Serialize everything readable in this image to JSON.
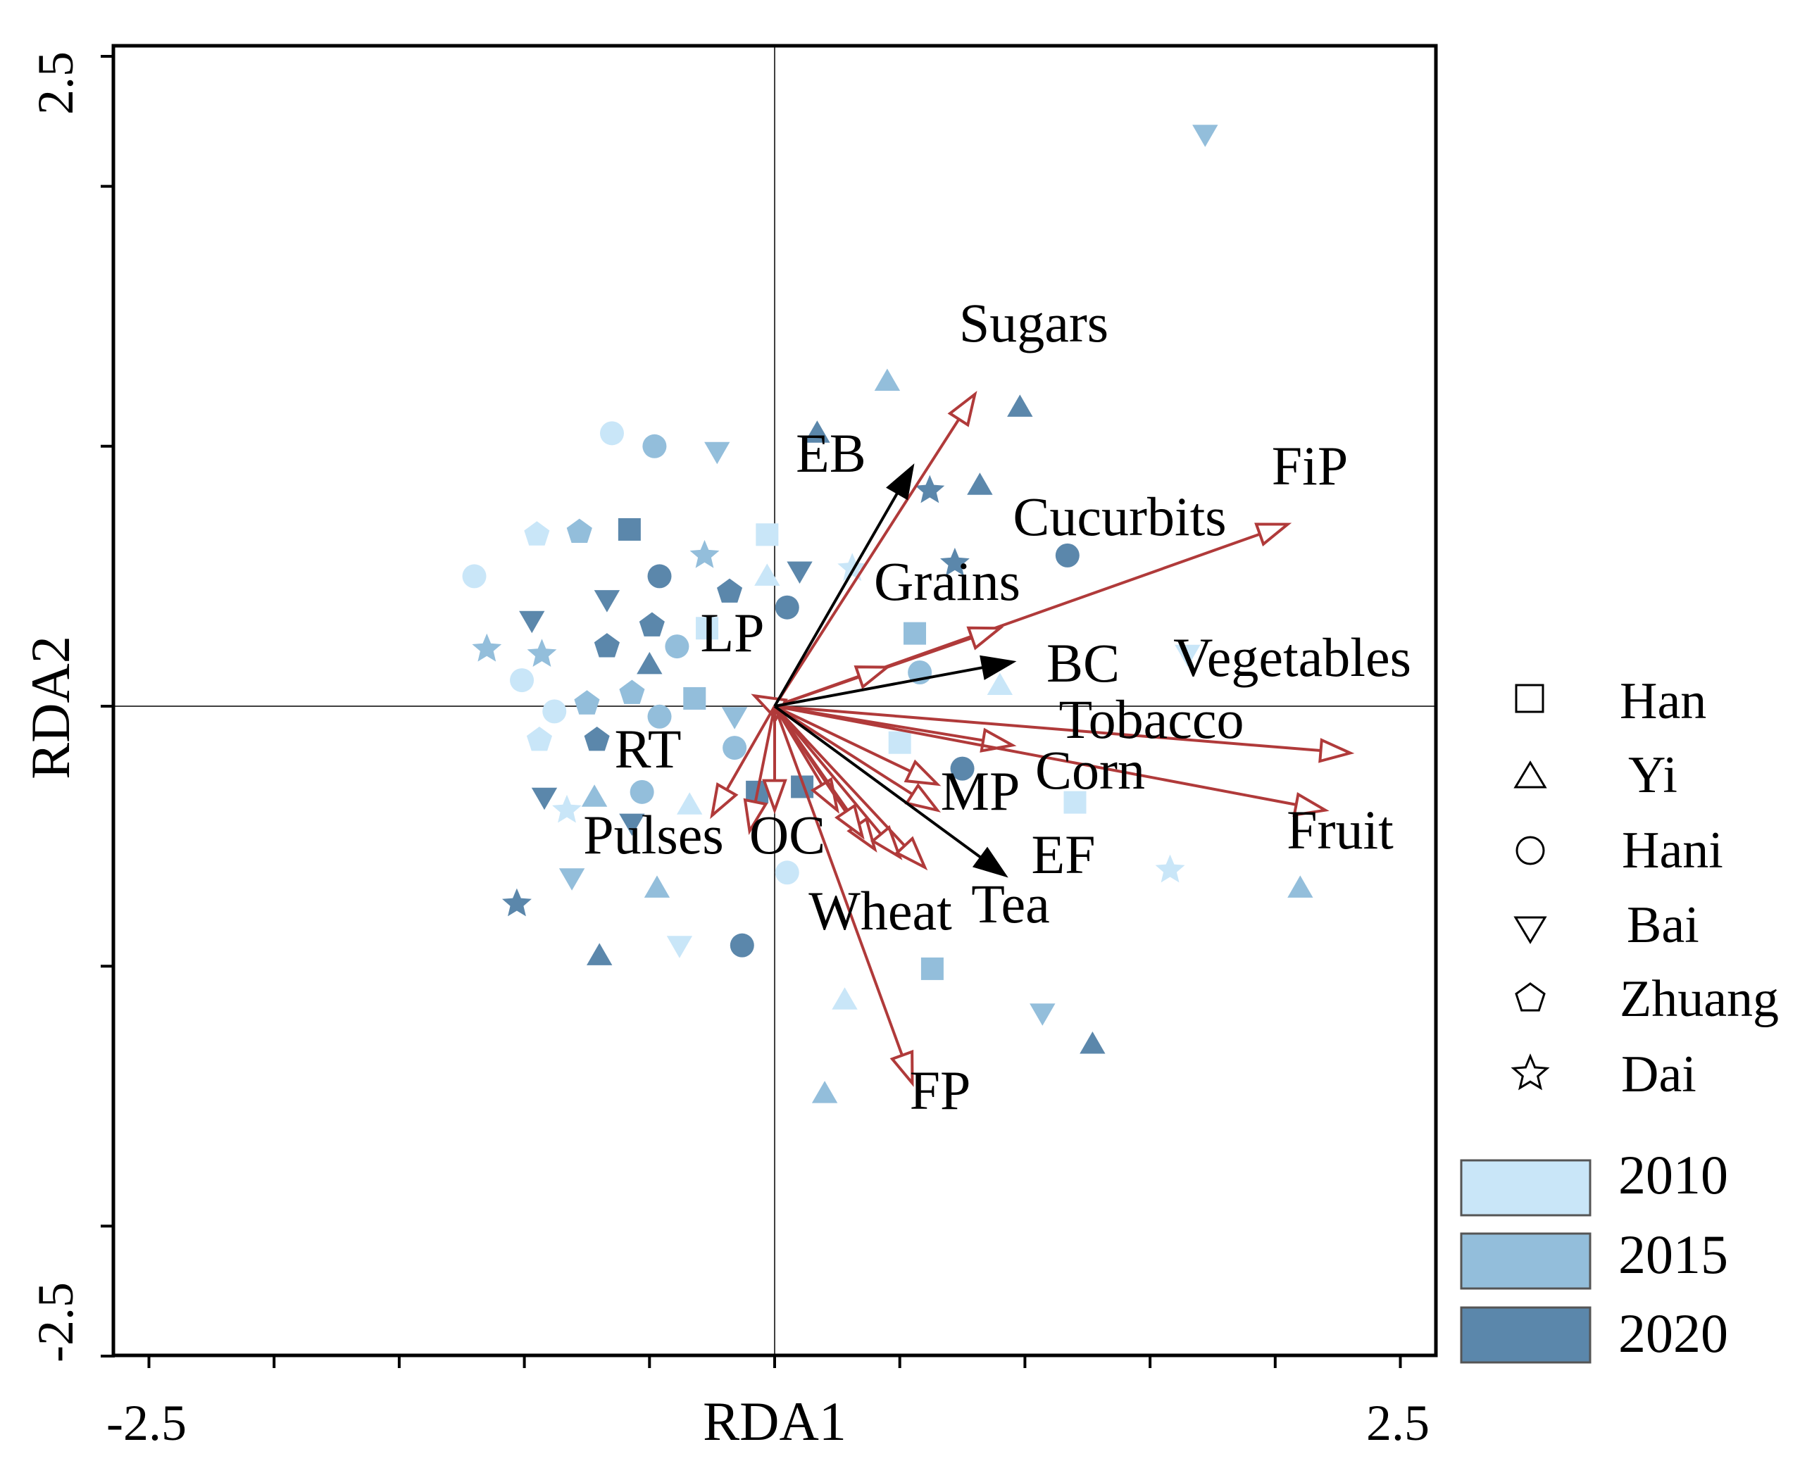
{
  "chart_data": {
    "type": "scatter",
    "subtype": "RDA biplot",
    "title": "",
    "xlabel": "RDA1",
    "ylabel": "RDA2",
    "xlim": [
      -2.5,
      2.5
    ],
    "ylim": [
      -2.5,
      2.5
    ],
    "x_tick_labels": [
      "-2.5",
      "2.5"
    ],
    "y_tick_labels": [
      "2.5",
      "-2.5"
    ],
    "x_ticks": [
      -2.5,
      -2.0,
      -1.5,
      -1.0,
      -0.5,
      0,
      0.5,
      1.0,
      1.5,
      2.0,
      2.5
    ],
    "y_ticks": [
      2.5,
      2.0,
      1.0,
      0,
      -1.0,
      -2.0,
      -2.5
    ],
    "reference_lines": [
      0,
      0
    ],
    "colors": {
      "2010": "#c9e6f8",
      "2015": "#93bedb",
      "2020": "#5b87ab",
      "response_arrow": "#b03a3a",
      "explanatory_arrow": "#000000"
    },
    "response_vectors": [
      {
        "label": "Sugars",
        "x": 0.8,
        "y": 1.2
      },
      {
        "label": "FiP",
        "x": 2.05,
        "y": 0.7
      },
      {
        "label": "Cucurbits",
        "x": 0.9,
        "y": 0.3
      },
      {
        "label": "Grains",
        "x": 0.45,
        "y": 0.15
      },
      {
        "label": "LP",
        "x": -0.08,
        "y": 0.04
      },
      {
        "label": "Vegetables",
        "x": 2.3,
        "y": -0.18
      },
      {
        "label": "Tobacco",
        "x": 0.95,
        "y": -0.15
      },
      {
        "label": "Fruit",
        "x": 2.2,
        "y": -0.4
      },
      {
        "label": "Corn",
        "x": 0.65,
        "y": -0.3
      },
      {
        "label": "MP",
        "x": 0.65,
        "y": -0.4
      },
      {
        "label": "RT",
        "x": -0.25,
        "y": -0.42
      },
      {
        "label": "Pulses",
        "x": -0.1,
        "y": -0.48
      },
      {
        "label": "OC",
        "x": 0.0,
        "y": -0.4
      },
      {
        "label": "Wheat",
        "x": 0.35,
        "y": -0.5
      },
      {
        "label": "Tea",
        "x": 0.6,
        "y": -0.62
      },
      {
        "label": "FP",
        "x": 0.55,
        "y": -1.45
      }
    ],
    "extra_response_arrows": [
      {
        "x": 0.25,
        "y": -0.4
      },
      {
        "x": 0.4,
        "y": -0.55
      },
      {
        "x": 0.5,
        "y": -0.58
      }
    ],
    "explanatory_vectors": [
      {
        "label": "EB",
        "x": 0.55,
        "y": 0.92
      },
      {
        "label": "BC",
        "x": 0.95,
        "y": 0.17
      },
      {
        "label": "EF",
        "x": 0.92,
        "y": -0.65
      }
    ],
    "legend_groups": [
      {
        "name": "Han",
        "shape": "square"
      },
      {
        "name": "Yi",
        "shape": "triangle-up"
      },
      {
        "name": "Hani",
        "shape": "circle"
      },
      {
        "name": "Bai",
        "shape": "triangle-down"
      },
      {
        "name": "Zhuang",
        "shape": "pentagon"
      },
      {
        "name": "Dai",
        "shape": "star"
      }
    ],
    "legend_years": [
      "2010",
      "2015",
      "2020"
    ],
    "points": [
      {
        "group": "Bai",
        "year": "2015",
        "x": 1.72,
        "y": 2.2
      },
      {
        "group": "Yi",
        "year": "2015",
        "x": 0.45,
        "y": 1.25
      },
      {
        "group": "Yi",
        "year": "2020",
        "x": 0.98,
        "y": 1.15
      },
      {
        "group": "Yi",
        "year": "2020",
        "x": 0.17,
        "y": 1.05
      },
      {
        "group": "Hani",
        "year": "2010",
        "x": -0.65,
        "y": 1.05
      },
      {
        "group": "Hani",
        "year": "2015",
        "x": -0.48,
        "y": 1.0
      },
      {
        "group": "Bai",
        "year": "2015",
        "x": -0.23,
        "y": 0.98
      },
      {
        "group": "Yi",
        "year": "2020",
        "x": 0.82,
        "y": 0.85
      },
      {
        "group": "Dai",
        "year": "2020",
        "x": 0.62,
        "y": 0.83
      },
      {
        "group": "Zhuang",
        "year": "2010",
        "x": -0.95,
        "y": 0.66
      },
      {
        "group": "Zhuang",
        "year": "2015",
        "x": -0.78,
        "y": 0.67
      },
      {
        "group": "Han",
        "year": "2020",
        "x": -0.58,
        "y": 0.68
      },
      {
        "group": "Han",
        "year": "2010",
        "x": -0.03,
        "y": 0.66
      },
      {
        "group": "Dai",
        "year": "2015",
        "x": -0.28,
        "y": 0.58
      },
      {
        "group": "Bai",
        "year": "2020",
        "x": 0.1,
        "y": 0.52
      },
      {
        "group": "Dai",
        "year": "2010",
        "x": 0.31,
        "y": 0.53
      },
      {
        "group": "Dai",
        "year": "2020",
        "x": 0.72,
        "y": 0.55
      },
      {
        "group": "Hani",
        "year": "2020",
        "x": 1.17,
        "y": 0.58
      },
      {
        "group": "Hani",
        "year": "2010",
        "x": -1.2,
        "y": 0.5
      },
      {
        "group": "Hani",
        "year": "2020",
        "x": -0.46,
        "y": 0.5
      },
      {
        "group": "Yi",
        "year": "2010",
        "x": -0.03,
        "y": 0.5
      },
      {
        "group": "Zhuang",
        "year": "2020",
        "x": -0.18,
        "y": 0.44
      },
      {
        "group": "Bai",
        "year": "2020",
        "x": -0.67,
        "y": 0.41
      },
      {
        "group": "Hani",
        "year": "2020",
        "x": 0.05,
        "y": 0.38
      },
      {
        "group": "Bai",
        "year": "2020",
        "x": -0.97,
        "y": 0.33
      },
      {
        "group": "Zhuang",
        "year": "2020",
        "x": -0.49,
        "y": 0.31
      },
      {
        "group": "Han",
        "year": "2010",
        "x": -0.27,
        "y": 0.3
      },
      {
        "group": "Han",
        "year": "2015",
        "x": 0.56,
        "y": 0.28
      },
      {
        "group": "Hani",
        "year": "2015",
        "x": -0.39,
        "y": 0.23
      },
      {
        "group": "Dai",
        "year": "2015",
        "x": -1.15,
        "y": 0.22
      },
      {
        "group": "Dai",
        "year": "2015",
        "x": -0.93,
        "y": 0.2
      },
      {
        "group": "Zhuang",
        "year": "2020",
        "x": -0.67,
        "y": 0.23
      },
      {
        "group": "Yi",
        "year": "2020",
        "x": -0.5,
        "y": 0.16
      },
      {
        "group": "Bai",
        "year": "2010",
        "x": 1.65,
        "y": 0.2
      },
      {
        "group": "Hani",
        "year": "2010",
        "x": -1.01,
        "y": 0.1
      },
      {
        "group": "Hani",
        "year": "2015",
        "x": 0.58,
        "y": 0.13
      },
      {
        "group": "Yi",
        "year": "2010",
        "x": 0.9,
        "y": 0.08
      },
      {
        "group": "Zhuang",
        "year": "2015",
        "x": -0.57,
        "y": 0.05
      },
      {
        "group": "Han",
        "year": "2015",
        "x": -0.32,
        "y": 0.03
      },
      {
        "group": "Zhuang",
        "year": "2015",
        "x": -0.75,
        "y": 0.01
      },
      {
        "group": "Hani",
        "year": "2015",
        "x": -0.46,
        "y": -0.04
      },
      {
        "group": "Hani",
        "year": "2010",
        "x": -0.88,
        "y": -0.02
      },
      {
        "group": "Bai",
        "year": "2015",
        "x": -0.16,
        "y": -0.04
      },
      {
        "group": "Zhuang",
        "year": "2010",
        "x": -0.94,
        "y": -0.13
      },
      {
        "group": "Zhuang",
        "year": "2020",
        "x": -0.71,
        "y": -0.13
      },
      {
        "group": "Han",
        "year": "2010",
        "x": 0.5,
        "y": -0.14
      },
      {
        "group": "Hani",
        "year": "2015",
        "x": -0.16,
        "y": -0.16
      },
      {
        "group": "Hani",
        "year": "2020",
        "x": 0.75,
        "y": -0.24
      },
      {
        "group": "Bai",
        "year": "2020",
        "x": -0.92,
        "y": -0.35
      },
      {
        "group": "Yi",
        "year": "2015",
        "x": -0.72,
        "y": -0.35
      },
      {
        "group": "Hani",
        "year": "2015",
        "x": -0.53,
        "y": -0.33
      },
      {
        "group": "Han",
        "year": "2020",
        "x": -0.07,
        "y": -0.33
      },
      {
        "group": "Han",
        "year": "2020",
        "x": 0.11,
        "y": -0.31
      },
      {
        "group": "Dai",
        "year": "2010",
        "x": -0.83,
        "y": -0.4
      },
      {
        "group": "Yi",
        "year": "2010",
        "x": -0.34,
        "y": -0.38
      },
      {
        "group": "Han",
        "year": "2010",
        "x": 1.2,
        "y": -0.37
      },
      {
        "group": "Bai",
        "year": "2020",
        "x": -0.57,
        "y": -0.45
      },
      {
        "group": "Hani",
        "year": "2010",
        "x": 0.05,
        "y": -0.64
      },
      {
        "group": "Bai",
        "year": "2015",
        "x": -0.81,
        "y": -0.66
      },
      {
        "group": "Yi",
        "year": "2015",
        "x": -0.47,
        "y": -0.7
      },
      {
        "group": "Dai",
        "year": "2010",
        "x": 1.58,
        "y": -0.63
      },
      {
        "group": "Yi",
        "year": "2015",
        "x": 2.1,
        "y": -0.7
      },
      {
        "group": "Dai",
        "year": "2020",
        "x": -1.03,
        "y": -0.76
      },
      {
        "group": "Hani",
        "year": "2020",
        "x": -0.13,
        "y": -0.92
      },
      {
        "group": "Bai",
        "year": "2010",
        "x": -0.38,
        "y": -0.92
      },
      {
        "group": "Yi",
        "year": "2020",
        "x": -0.7,
        "y": -0.96
      },
      {
        "group": "Han",
        "year": "2015",
        "x": 0.63,
        "y": -1.01
      },
      {
        "group": "Yi",
        "year": "2010",
        "x": 0.28,
        "y": -1.13
      },
      {
        "group": "Bai",
        "year": "2015",
        "x": 1.07,
        "y": -1.18
      },
      {
        "group": "Yi",
        "year": "2020",
        "x": 1.27,
        "y": -1.3
      },
      {
        "group": "Yi",
        "year": "2015",
        "x": 0.2,
        "y": -1.49
      }
    ]
  }
}
